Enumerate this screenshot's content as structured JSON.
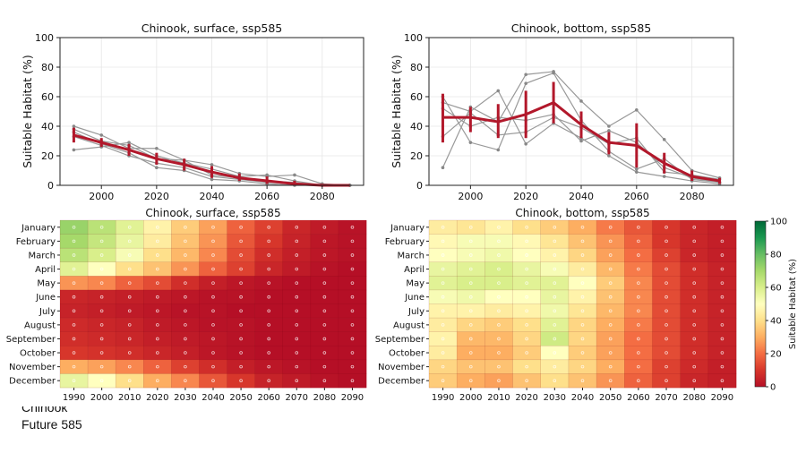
{
  "notes": {
    "line1": "Chinook",
    "line2": "Future 585"
  },
  "colors": {
    "observation": "#999999",
    "mean": "#b2182b",
    "colormap": [
      "#b50f26",
      "#d7362b",
      "#f46d43",
      "#fdae61",
      "#fee08b",
      "#ffffbf",
      "#d9ef8b",
      "#a6d96a",
      "#66bd63",
      "#1a9850",
      "#006837"
    ]
  },
  "chart_data": [
    {
      "type": "line",
      "title": "Chinook, surface, ssp585",
      "ylabel": "Suitable Habitat (%)",
      "xlabel": "",
      "xlim": [
        1985,
        2095
      ],
      "ylim": [
        0,
        100
      ],
      "xticks": [
        2000,
        2020,
        2040,
        2060,
        2080
      ],
      "yticks": [
        0,
        20,
        40,
        60,
        80,
        100
      ],
      "grid": true,
      "x": [
        1990,
        2000,
        2010,
        2020,
        2030,
        2040,
        2050,
        2060,
        2070,
        2080,
        2090
      ],
      "mean": [
        34,
        29,
        24,
        18,
        14,
        9,
        5,
        3,
        1,
        0,
        0
      ],
      "error": [
        [
          29,
          39
        ],
        [
          26,
          32
        ],
        [
          20,
          28
        ],
        [
          14,
          22
        ],
        [
          10,
          18
        ],
        [
          5,
          13
        ],
        [
          3,
          8
        ],
        [
          1,
          6
        ],
        [
          0,
          3
        ],
        [
          0,
          1
        ],
        [
          0,
          0
        ]
      ],
      "series": [
        {
          "values": [
            40,
            34,
            25,
            25,
            17,
            14,
            8,
            6,
            7,
            1,
            0
          ]
        },
        {
          "values": [
            24,
            26,
            29,
            20,
            15,
            11,
            6,
            7,
            3,
            0,
            0
          ]
        },
        {
          "values": [
            38,
            30,
            27,
            18,
            17,
            7,
            5,
            3,
            2,
            0,
            0
          ]
        },
        {
          "values": [
            33,
            27,
            20,
            15,
            12,
            6,
            4,
            2,
            1,
            0,
            0
          ]
        },
        {
          "values": [
            36,
            28,
            22,
            12,
            10,
            4,
            3,
            1,
            0,
            0,
            0
          ]
        }
      ]
    },
    {
      "type": "line",
      "title": "Chinook, bottom, ssp585",
      "ylabel": "Suitable Habitat (%)",
      "xlabel": "",
      "xlim": [
        1985,
        2095
      ],
      "ylim": [
        0,
        100
      ],
      "xticks": [
        2000,
        2020,
        2040,
        2060,
        2080
      ],
      "yticks": [
        0,
        20,
        40,
        60,
        80,
        100
      ],
      "grid": true,
      "x": [
        1990,
        2000,
        2010,
        2020,
        2030,
        2040,
        2050,
        2060,
        2070,
        2080,
        2090
      ],
      "mean": [
        46,
        46,
        43,
        48,
        56,
        41,
        29,
        27,
        15,
        6,
        3
      ],
      "error": [
        [
          29,
          62
        ],
        [
          36,
          53
        ],
        [
          32,
          55
        ],
        [
          32,
          64
        ],
        [
          42,
          70
        ],
        [
          32,
          50
        ],
        [
          21,
          36
        ],
        [
          12,
          42
        ],
        [
          8,
          22
        ],
        [
          3,
          10
        ],
        [
          1,
          5
        ]
      ],
      "series": [
        {
          "values": [
            12,
            53,
            43,
            75,
            77,
            57,
            40,
            51,
            31,
            10,
            5
          ]
        },
        {
          "values": [
            60,
            29,
            24,
            69,
            76,
            44,
            23,
            11,
            18,
            4,
            2
          ]
        },
        {
          "values": [
            56,
            50,
            64,
            28,
            42,
            32,
            20,
            9,
            6,
            3,
            1
          ]
        },
        {
          "values": [
            52,
            40,
            46,
            44,
            48,
            30,
            37,
            29,
            12,
            5,
            2
          ]
        },
        {
          "values": [
            33,
            49,
            34,
            36,
            46,
            39,
            28,
            32,
            9,
            7,
            4
          ]
        }
      ]
    },
    {
      "type": "heatmap",
      "title": "Chinook, surface, ssp585",
      "x": [
        "1990",
        "2000",
        "2010",
        "2020",
        "2030",
        "2040",
        "2050",
        "2060",
        "2070",
        "2080",
        "2090"
      ],
      "y": [
        "January",
        "February",
        "March",
        "April",
        "May",
        "June",
        "July",
        "August",
        "September",
        "October",
        "November",
        "December"
      ],
      "values": [
        [
          72,
          66,
          58,
          46,
          36,
          28,
          18,
          12,
          6,
          3,
          1
        ],
        [
          70,
          64,
          56,
          44,
          34,
          26,
          16,
          10,
          5,
          2,
          1
        ],
        [
          66,
          60,
          52,
          40,
          32,
          24,
          14,
          8,
          4,
          2,
          1
        ],
        [
          58,
          50,
          40,
          34,
          26,
          18,
          12,
          6,
          3,
          1,
          0
        ],
        [
          26,
          24,
          18,
          14,
          8,
          4,
          2,
          1,
          0,
          0,
          0
        ],
        [
          6,
          5,
          4,
          3,
          2,
          1,
          1,
          0,
          0,
          0,
          0
        ],
        [
          5,
          4,
          3,
          2,
          1,
          1,
          0,
          0,
          0,
          0,
          0
        ],
        [
          7,
          6,
          5,
          3,
          2,
          1,
          1,
          0,
          0,
          0,
          0
        ],
        [
          8,
          7,
          6,
          4,
          3,
          2,
          1,
          0,
          0,
          0,
          0
        ],
        [
          10,
          9,
          8,
          6,
          4,
          2,
          1,
          0,
          0,
          0,
          0
        ],
        [
          30,
          28,
          24,
          18,
          12,
          8,
          4,
          2,
          1,
          0,
          0
        ],
        [
          56,
          50,
          40,
          30,
          24,
          16,
          10,
          5,
          3,
          1,
          0
        ]
      ]
    },
    {
      "type": "heatmap",
      "title": "Chinook, bottom, ssp585",
      "x": [
        "1990",
        "2000",
        "2010",
        "2020",
        "2030",
        "2040",
        "2050",
        "2060",
        "2070",
        "2080",
        "2090"
      ],
      "y": [
        "January",
        "February",
        "March",
        "April",
        "May",
        "June",
        "July",
        "August",
        "September",
        "October",
        "November",
        "December"
      ],
      "values": [
        [
          44,
          42,
          46,
          40,
          36,
          30,
          22,
          16,
          10,
          6,
          4
        ],
        [
          48,
          52,
          52,
          48,
          42,
          34,
          26,
          18,
          10,
          6,
          4
        ],
        [
          50,
          52,
          54,
          50,
          46,
          38,
          28,
          20,
          12,
          6,
          4
        ],
        [
          56,
          58,
          60,
          56,
          52,
          44,
          32,
          22,
          14,
          8,
          5
        ],
        [
          58,
          60,
          60,
          58,
          58,
          50,
          36,
          24,
          14,
          8,
          5
        ],
        [
          52,
          54,
          50,
          50,
          56,
          46,
          34,
          24,
          14,
          8,
          5
        ],
        [
          46,
          46,
          44,
          46,
          54,
          42,
          32,
          24,
          14,
          8,
          5
        ],
        [
          44,
          38,
          36,
          40,
          58,
          38,
          30,
          22,
          14,
          8,
          5
        ],
        [
          46,
          32,
          32,
          38,
          62,
          38,
          28,
          20,
          14,
          8,
          5
        ],
        [
          44,
          30,
          30,
          36,
          50,
          36,
          28,
          20,
          14,
          8,
          5
        ],
        [
          38,
          34,
          34,
          40,
          44,
          38,
          30,
          20,
          12,
          7,
          4
        ],
        [
          36,
          30,
          28,
          34,
          40,
          34,
          26,
          18,
          12,
          6,
          4
        ]
      ]
    },
    {
      "type": "colorbar",
      "label": "Suitable Habitat (%)",
      "range": [
        0,
        100
      ],
      "ticks": [
        0,
        20,
        40,
        60,
        80,
        100
      ]
    }
  ]
}
